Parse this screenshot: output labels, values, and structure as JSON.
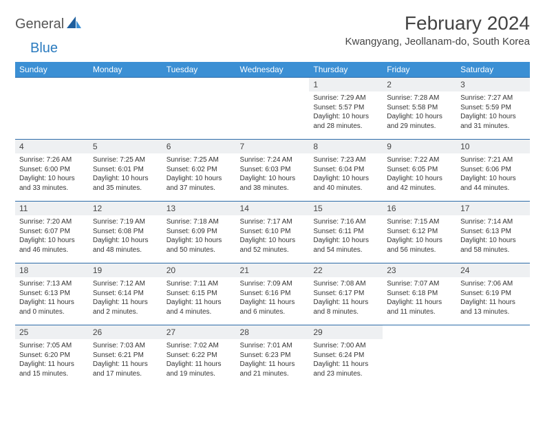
{
  "logo": {
    "text1": "General",
    "text2": "Blue"
  },
  "title": "February 2024",
  "location": "Kwangyang, Jeollanam-do, South Korea",
  "colors": {
    "header_bg": "#3b8fd4",
    "header_text": "#ffffff",
    "row_border": "#2b6aa8",
    "daynum_bg": "#eef0f2",
    "logo_blue": "#2b7bbf"
  },
  "dayNames": [
    "Sunday",
    "Monday",
    "Tuesday",
    "Wednesday",
    "Thursday",
    "Friday",
    "Saturday"
  ],
  "weeks": [
    [
      {
        "empty": true
      },
      {
        "empty": true
      },
      {
        "empty": true
      },
      {
        "empty": true
      },
      {
        "n": "1",
        "sr": "7:29 AM",
        "ss": "5:57 PM",
        "dl": "10 hours and 28 minutes."
      },
      {
        "n": "2",
        "sr": "7:28 AM",
        "ss": "5:58 PM",
        "dl": "10 hours and 29 minutes."
      },
      {
        "n": "3",
        "sr": "7:27 AM",
        "ss": "5:59 PM",
        "dl": "10 hours and 31 minutes."
      }
    ],
    [
      {
        "n": "4",
        "sr": "7:26 AM",
        "ss": "6:00 PM",
        "dl": "10 hours and 33 minutes."
      },
      {
        "n": "5",
        "sr": "7:25 AM",
        "ss": "6:01 PM",
        "dl": "10 hours and 35 minutes."
      },
      {
        "n": "6",
        "sr": "7:25 AM",
        "ss": "6:02 PM",
        "dl": "10 hours and 37 minutes."
      },
      {
        "n": "7",
        "sr": "7:24 AM",
        "ss": "6:03 PM",
        "dl": "10 hours and 38 minutes."
      },
      {
        "n": "8",
        "sr": "7:23 AM",
        "ss": "6:04 PM",
        "dl": "10 hours and 40 minutes."
      },
      {
        "n": "9",
        "sr": "7:22 AM",
        "ss": "6:05 PM",
        "dl": "10 hours and 42 minutes."
      },
      {
        "n": "10",
        "sr": "7:21 AM",
        "ss": "6:06 PM",
        "dl": "10 hours and 44 minutes."
      }
    ],
    [
      {
        "n": "11",
        "sr": "7:20 AM",
        "ss": "6:07 PM",
        "dl": "10 hours and 46 minutes."
      },
      {
        "n": "12",
        "sr": "7:19 AM",
        "ss": "6:08 PM",
        "dl": "10 hours and 48 minutes."
      },
      {
        "n": "13",
        "sr": "7:18 AM",
        "ss": "6:09 PM",
        "dl": "10 hours and 50 minutes."
      },
      {
        "n": "14",
        "sr": "7:17 AM",
        "ss": "6:10 PM",
        "dl": "10 hours and 52 minutes."
      },
      {
        "n": "15",
        "sr": "7:16 AM",
        "ss": "6:11 PM",
        "dl": "10 hours and 54 minutes."
      },
      {
        "n": "16",
        "sr": "7:15 AM",
        "ss": "6:12 PM",
        "dl": "10 hours and 56 minutes."
      },
      {
        "n": "17",
        "sr": "7:14 AM",
        "ss": "6:13 PM",
        "dl": "10 hours and 58 minutes."
      }
    ],
    [
      {
        "n": "18",
        "sr": "7:13 AM",
        "ss": "6:13 PM",
        "dl": "11 hours and 0 minutes."
      },
      {
        "n": "19",
        "sr": "7:12 AM",
        "ss": "6:14 PM",
        "dl": "11 hours and 2 minutes."
      },
      {
        "n": "20",
        "sr": "7:11 AM",
        "ss": "6:15 PM",
        "dl": "11 hours and 4 minutes."
      },
      {
        "n": "21",
        "sr": "7:09 AM",
        "ss": "6:16 PM",
        "dl": "11 hours and 6 minutes."
      },
      {
        "n": "22",
        "sr": "7:08 AM",
        "ss": "6:17 PM",
        "dl": "11 hours and 8 minutes."
      },
      {
        "n": "23",
        "sr": "7:07 AM",
        "ss": "6:18 PM",
        "dl": "11 hours and 11 minutes."
      },
      {
        "n": "24",
        "sr": "7:06 AM",
        "ss": "6:19 PM",
        "dl": "11 hours and 13 minutes."
      }
    ],
    [
      {
        "n": "25",
        "sr": "7:05 AM",
        "ss": "6:20 PM",
        "dl": "11 hours and 15 minutes."
      },
      {
        "n": "26",
        "sr": "7:03 AM",
        "ss": "6:21 PM",
        "dl": "11 hours and 17 minutes."
      },
      {
        "n": "27",
        "sr": "7:02 AM",
        "ss": "6:22 PM",
        "dl": "11 hours and 19 minutes."
      },
      {
        "n": "28",
        "sr": "7:01 AM",
        "ss": "6:23 PM",
        "dl": "11 hours and 21 minutes."
      },
      {
        "n": "29",
        "sr": "7:00 AM",
        "ss": "6:24 PM",
        "dl": "11 hours and 23 minutes."
      },
      {
        "empty": true
      },
      {
        "empty": true
      }
    ]
  ],
  "labels": {
    "sunrise": "Sunrise:",
    "sunset": "Sunset:",
    "daylight": "Daylight:"
  }
}
